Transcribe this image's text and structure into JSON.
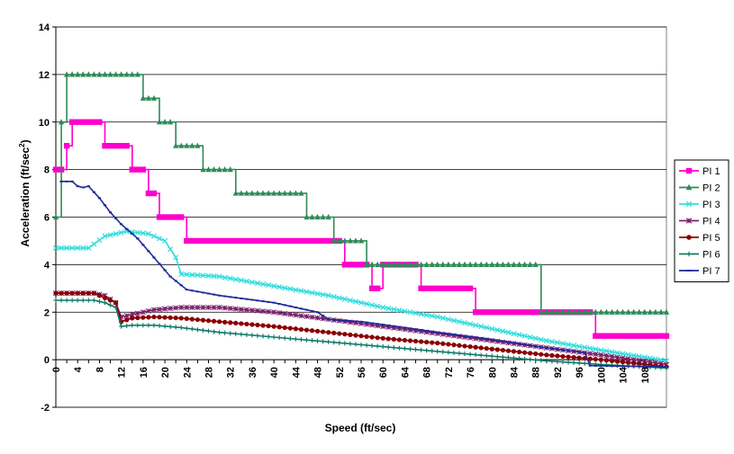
{
  "chart_data": {
    "type": "line",
    "title": "",
    "xlabel": "Speed (ft/sec)",
    "ylabel": "Acceleration (ft/sec",
    "ylabel_sup": "2",
    "ylabel_close": ")",
    "xlim": [
      0,
      112
    ],
    "ylim": [
      -2,
      14
    ],
    "yticks": [
      -2,
      0,
      2,
      4,
      6,
      8,
      10,
      12,
      14
    ],
    "xticks": [
      0,
      4,
      8,
      12,
      16,
      20,
      24,
      28,
      32,
      36,
      40,
      44,
      48,
      52,
      56,
      60,
      64,
      68,
      72,
      76,
      80,
      84,
      88,
      92,
      96,
      100,
      104,
      108
    ],
    "grid": "horizontal",
    "legend_position": "right",
    "series": [
      {
        "name": "PI 1",
        "color": "#ff00cc",
        "marker": "square",
        "points": [
          [
            0,
            8
          ],
          [
            2,
            8
          ],
          [
            2,
            9
          ],
          [
            3,
            9
          ],
          [
            3,
            10
          ],
          [
            9,
            10
          ],
          [
            9,
            9
          ],
          [
            14,
            9
          ],
          [
            14,
            8
          ],
          [
            17,
            8
          ],
          [
            17,
            7
          ],
          [
            19,
            7
          ],
          [
            19,
            6
          ],
          [
            24,
            6
          ],
          [
            24,
            5
          ],
          [
            53,
            5
          ],
          [
            53,
            4
          ],
          [
            58,
            4
          ],
          [
            58,
            3
          ],
          [
            60,
            3
          ],
          [
            60,
            4
          ],
          [
            67,
            4
          ],
          [
            67,
            3
          ],
          [
            77,
            3
          ],
          [
            77,
            2
          ],
          [
            99,
            2
          ],
          [
            99,
            1
          ],
          [
            112,
            1
          ]
        ]
      },
      {
        "name": "PI 2",
        "color": "#2e8b57",
        "marker": "triangle",
        "points": [
          [
            0,
            6
          ],
          [
            1,
            6
          ],
          [
            1,
            10
          ],
          [
            2,
            10
          ],
          [
            2,
            12
          ],
          [
            16,
            12
          ],
          [
            16,
            11
          ],
          [
            19,
            11
          ],
          [
            19,
            10
          ],
          [
            22,
            10
          ],
          [
            22,
            9
          ],
          [
            27,
            9
          ],
          [
            27,
            8
          ],
          [
            33,
            8
          ],
          [
            33,
            7
          ],
          [
            46,
            7
          ],
          [
            46,
            6
          ],
          [
            51,
            6
          ],
          [
            51,
            5
          ],
          [
            57,
            5
          ],
          [
            57,
            4
          ],
          [
            89,
            4
          ],
          [
            89,
            2
          ],
          [
            112,
            2
          ]
        ]
      },
      {
        "name": "PI 3",
        "color": "#33dddd",
        "marker": "x",
        "points": [
          [
            0,
            4.7
          ],
          [
            6,
            4.7
          ],
          [
            9,
            5.2
          ],
          [
            13,
            5.4
          ],
          [
            17,
            5.3
          ],
          [
            20,
            5.0
          ],
          [
            22,
            4.3
          ],
          [
            23,
            3.6
          ],
          [
            30,
            3.5
          ],
          [
            40,
            3.1
          ],
          [
            50,
            2.7
          ],
          [
            60,
            2.2
          ],
          [
            70,
            1.8
          ],
          [
            80,
            1.3
          ],
          [
            90,
            0.8
          ],
          [
            100,
            0.4
          ],
          [
            112,
            -0.05
          ]
        ]
      },
      {
        "name": "PI 4",
        "color": "#7a1f6b",
        "marker": "asterisk",
        "points": [
          [
            0,
            2.8
          ],
          [
            7,
            2.8
          ],
          [
            9,
            2.7
          ],
          [
            11,
            2.4
          ],
          [
            12,
            1.8
          ],
          [
            14,
            1.9
          ],
          [
            18,
            2.1
          ],
          [
            23,
            2.2
          ],
          [
            30,
            2.2
          ],
          [
            40,
            2.0
          ],
          [
            50,
            1.7
          ],
          [
            60,
            1.4
          ],
          [
            70,
            1.1
          ],
          [
            80,
            0.8
          ],
          [
            90,
            0.5
          ],
          [
            100,
            0.2
          ],
          [
            112,
            -0.2
          ]
        ]
      },
      {
        "name": "PI 5",
        "color": "#8b0000",
        "marker": "circle",
        "points": [
          [
            0,
            2.8
          ],
          [
            7,
            2.8
          ],
          [
            9,
            2.6
          ],
          [
            11,
            2.4
          ],
          [
            12,
            1.6
          ],
          [
            14,
            1.75
          ],
          [
            18,
            1.8
          ],
          [
            23,
            1.75
          ],
          [
            30,
            1.6
          ],
          [
            40,
            1.4
          ],
          [
            50,
            1.15
          ],
          [
            60,
            0.9
          ],
          [
            70,
            0.7
          ],
          [
            80,
            0.45
          ],
          [
            90,
            0.2
          ],
          [
            100,
            0.0
          ],
          [
            112,
            -0.3
          ]
        ]
      },
      {
        "name": "PI 6",
        "color": "#117a6a",
        "marker": "plus",
        "points": [
          [
            0,
            2.5
          ],
          [
            7,
            2.5
          ],
          [
            9,
            2.4
          ],
          [
            11,
            2.2
          ],
          [
            12,
            1.4
          ],
          [
            14,
            1.45
          ],
          [
            18,
            1.45
          ],
          [
            23,
            1.35
          ],
          [
            30,
            1.15
          ],
          [
            40,
            0.95
          ],
          [
            50,
            0.75
          ],
          [
            60,
            0.55
          ],
          [
            70,
            0.35
          ],
          [
            80,
            0.15
          ],
          [
            90,
            -0.05
          ],
          [
            100,
            -0.2
          ],
          [
            112,
            -0.35
          ]
        ]
      },
      {
        "name": "PI 7",
        "color": "#1f2a9a",
        "marker": "dash",
        "points": [
          [
            1,
            7.5
          ],
          [
            3,
            7.5
          ],
          [
            4,
            7.3
          ],
          [
            5,
            7.25
          ],
          [
            6,
            7.3
          ],
          [
            8,
            6.8
          ],
          [
            10,
            6.2
          ],
          [
            12,
            5.7
          ],
          [
            15,
            5.1
          ],
          [
            18,
            4.3
          ],
          [
            21,
            3.5
          ],
          [
            24,
            2.95
          ],
          [
            30,
            2.7
          ],
          [
            40,
            2.4
          ],
          [
            48,
            2.0
          ],
          [
            50,
            1.7
          ],
          [
            56,
            1.6
          ],
          [
            64,
            1.35
          ],
          [
            70,
            1.15
          ],
          [
            80,
            0.85
          ],
          [
            90,
            0.5
          ],
          [
            97,
            0.3
          ],
          [
            98,
            -0.25
          ],
          [
            112,
            -0.3
          ]
        ]
      }
    ]
  }
}
